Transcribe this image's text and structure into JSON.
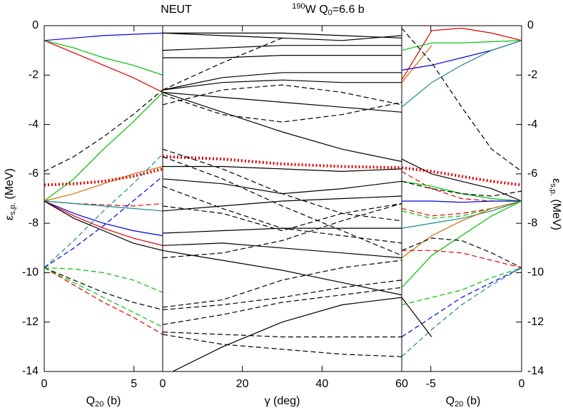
{
  "chart_data": [
    {
      "type": "line",
      "ylabel": [
        "ε",
        "s,p.",
        " (MeV)"
      ],
      "xlabel": [
        "Q",
        "20",
        " (b)"
      ],
      "xlim": [
        0,
        6.6
      ],
      "xticks": [
        0,
        5
      ],
      "ylim": [
        -14,
        0
      ],
      "yticks": [
        -14,
        -12,
        -10,
        -8,
        -6,
        -4,
        -2,
        0
      ],
      "ytick_side": "left",
      "x": [
        0,
        1.65,
        3.3,
        4.95,
        6.6
      ],
      "series": [
        {
          "color": "#e00000",
          "dash": "solid",
          "values": [
            -0.6,
            -1.1,
            -1.6,
            -2.1,
            -2.7
          ]
        },
        {
          "color": "#00c000",
          "dash": "solid",
          "values": [
            -0.6,
            -0.9,
            -1.3,
            -1.6,
            -2.0
          ]
        },
        {
          "color": "#0000e0",
          "dash": "solid",
          "values": [
            -0.6,
            -0.5,
            -0.4,
            -0.35,
            -0.3
          ]
        },
        {
          "color": "#000000",
          "dash": "dashed",
          "values": [
            -5.9,
            -5.3,
            -4.5,
            -3.6,
            -2.6
          ]
        },
        {
          "color": "#00c000",
          "dash": "solid",
          "values": [
            -7.1,
            -6.2,
            -5.0,
            -3.9,
            -2.7
          ]
        },
        {
          "color": "#d07000",
          "dash": "solid",
          "values": [
            -7.1,
            -6.8,
            -6.4,
            -6.0,
            -5.7
          ]
        },
        {
          "color": "#e00000",
          "dash": "dotted",
          "values": [
            -6.45,
            -6.4,
            -6.3,
            -6.1,
            -5.8
          ]
        },
        {
          "color": "#e00000",
          "dash": "dashed",
          "values": [
            -7.1,
            -7.2,
            -7.25,
            -7.3,
            -7.2
          ]
        },
        {
          "color": "#1a8a8a",
          "dash": "solid",
          "values": [
            -7.1,
            -7.2,
            -7.3,
            -7.4,
            -7.5
          ]
        },
        {
          "color": "#0000e0",
          "dash": "solid",
          "values": [
            -7.1,
            -7.6,
            -8.0,
            -8.3,
            -8.5
          ]
        },
        {
          "color": "#e00000",
          "dash": "solid",
          "values": [
            -7.1,
            -7.7,
            -8.2,
            -8.6,
            -8.9
          ]
        },
        {
          "color": "#000000",
          "dash": "solid",
          "values": [
            -7.1,
            -7.8,
            -8.3,
            -8.8,
            -9.1
          ]
        },
        {
          "color": "#1a8a8a",
          "dash": "dashed",
          "values": [
            -9.8,
            -8.7,
            -7.5,
            -6.4,
            -5.2
          ]
        },
        {
          "color": "#0000e0",
          "dash": "dashed",
          "values": [
            -9.8,
            -9.0,
            -8.1,
            -7.1,
            -6.1
          ]
        },
        {
          "color": "#00c000",
          "dash": "dashed",
          "values": [
            -9.8,
            -9.85,
            -10.0,
            -10.3,
            -10.8
          ]
        },
        {
          "color": "#000000",
          "dash": "dashed",
          "values": [
            -9.8,
            -10.3,
            -10.8,
            -11.2,
            -11.5
          ]
        },
        {
          "color": "#e00000",
          "dash": "dashed",
          "values": [
            -9.8,
            -10.5,
            -11.2,
            -11.8,
            -12.5
          ]
        },
        {
          "color": "#00c000",
          "dash": "dashed",
          "values": [
            -9.8,
            -10.4,
            -11.0,
            -11.6,
            -12.2
          ]
        }
      ]
    },
    {
      "type": "line",
      "label": "NEUT",
      "title": [
        "190",
        "W Q",
        "0",
        "=6.6 b"
      ],
      "xlabel": [
        "γ (deg)"
      ],
      "xlim": [
        0,
        60
      ],
      "xticks": [
        0,
        20,
        40,
        60
      ],
      "ylim": [
        -14,
        0
      ],
      "x": [
        0,
        15,
        30,
        45,
        60
      ],
      "series": [
        {
          "color": "#000000",
          "dash": "solid",
          "values": [
            -0.3,
            -0.3,
            -0.3,
            -0.4,
            -0.5
          ]
        },
        {
          "color": "#000000",
          "dash": "solid",
          "values": [
            -0.3,
            -0.4,
            -0.5,
            -0.6,
            -0.4
          ]
        },
        {
          "color": "#000000",
          "dash": "solid",
          "values": [
            -1.0,
            -0.9,
            -0.8,
            -0.8,
            -0.8
          ]
        },
        {
          "color": "#000000",
          "dash": "solid",
          "values": [
            -1.3,
            -1.3,
            -1.2,
            -1.2,
            -1.2
          ]
        },
        {
          "color": "#000000",
          "dash": "solid",
          "values": [
            -2.6,
            -2.1,
            -1.9,
            -1.9,
            -1.9
          ]
        },
        {
          "color": "#000000",
          "dash": "solid",
          "values": [
            -2.6,
            -2.3,
            -2.2,
            -2.3,
            -2.3
          ]
        },
        {
          "color": "#000000",
          "dash": "solid",
          "values": [
            -2.7,
            -2.9,
            -3.1,
            -3.3,
            -3.5
          ]
        },
        {
          "color": "#000000",
          "dash": "solid",
          "values": [
            -2.7,
            -3.5,
            -4.3,
            -5.0,
            -5.5
          ]
        },
        {
          "color": "#000000",
          "dash": "solid",
          "values": [
            -5.7,
            -5.7,
            -5.8,
            -5.9,
            -5.8
          ]
        },
        {
          "color": "#000000",
          "dash": "solid",
          "values": [
            -6.2,
            -6.4,
            -6.8,
            -6.6,
            -6.3
          ]
        },
        {
          "color": "#000000",
          "dash": "solid",
          "values": [
            -7.5,
            -7.3,
            -7.1,
            -7.0,
            -6.9
          ]
        },
        {
          "color": "#000000",
          "dash": "solid",
          "values": [
            -8.4,
            -8.3,
            -8.2,
            -8.2,
            -8.2
          ]
        },
        {
          "color": "#000000",
          "dash": "solid",
          "values": [
            -8.9,
            -8.8,
            -9.0,
            -9.2,
            -9.4
          ]
        },
        {
          "color": "#000000",
          "dash": "solid",
          "values": [
            -9.1,
            -9.5,
            -9.9,
            -10.4,
            -10.9
          ]
        },
        {
          "color": "#000000",
          "dash": "solid",
          "values": [
            -14.2,
            -13.0,
            -12.0,
            -11.3,
            -11.0
          ]
        },
        {
          "color": "#e00000",
          "dash": "dotted",
          "values": [
            -5.3,
            -5.4,
            -5.6,
            -5.7,
            -5.75
          ]
        },
        {
          "color": "#000000",
          "dash": "dashed",
          "values": [
            -2.6,
            -1.5,
            -0.5,
            null,
            null
          ]
        },
        {
          "color": "#000000",
          "dash": "dashed",
          "values": [
            -3.2,
            -2.6,
            -2.4,
            -2.7,
            -3.2
          ]
        },
        {
          "color": "#000000",
          "dash": "dashed",
          "values": [
            -2.8,
            -3.6,
            -3.9,
            -3.6,
            -3.1
          ]
        },
        {
          "color": "#000000",
          "dash": "dashed",
          "values": [
            -5.0,
            -5.8,
            -6.8,
            -7.6,
            -7.9
          ]
        },
        {
          "color": "#000000",
          "dash": "dashed",
          "values": [
            -5.3,
            -6.2,
            -7.3,
            -8.3,
            -9.3
          ]
        },
        {
          "color": "#000000",
          "dash": "dashed",
          "values": [
            -6.5,
            -7.4,
            -8.2,
            -8.5,
            -8.8
          ]
        },
        {
          "color": "#000000",
          "dash": "dashed",
          "values": [
            -7.3,
            -7.6,
            -8.3,
            -7.6,
            -7.2
          ]
        },
        {
          "color": "#000000",
          "dash": "dashed",
          "values": [
            -9.4,
            -9.2,
            -8.7,
            -7.9,
            -7.2
          ]
        },
        {
          "color": "#000000",
          "dash": "dashed",
          "values": [
            -11.4,
            -11.1,
            -10.3,
            -9.8,
            -9.5
          ]
        },
        {
          "color": "#000000",
          "dash": "dashed",
          "values": [
            -11.5,
            -11.3,
            -11.0,
            -10.6,
            -10.3
          ]
        },
        {
          "color": "#000000",
          "dash": "dashed",
          "values": [
            -12.1,
            -11.7,
            -11.2,
            -10.9,
            -10.6
          ]
        },
        {
          "color": "#000000",
          "dash": "dashed",
          "values": [
            -12.4,
            -12.5,
            -12.6,
            -12.6,
            -12.6
          ]
        },
        {
          "color": "#000000",
          "dash": "dashed",
          "values": [
            -12.5,
            -12.9,
            -13.1,
            -13.3,
            -13.4
          ]
        }
      ]
    },
    {
      "type": "line",
      "ylabel": [
        "ε",
        "s,p.",
        " (MeV)"
      ],
      "xlabel": [
        "Q",
        "20",
        " (b)"
      ],
      "xlim": [
        -6.6,
        0
      ],
      "xticks": [
        -5,
        0
      ],
      "ylim": [
        -14,
        0
      ],
      "yticks": [
        -14,
        -12,
        -10,
        -8,
        -6,
        -4,
        -2,
        0
      ],
      "ytick_side": "right",
      "x": [
        -6.6,
        -4.95,
        -3.3,
        -1.65,
        0
      ],
      "series": [
        {
          "color": "#e00000",
          "dash": "solid",
          "values": [
            -2.2,
            -0.2,
            -0.1,
            -0.3,
            -0.6
          ]
        },
        {
          "color": "#d07000",
          "dash": "solid",
          "values": [
            -2.3,
            -0.8,
            null,
            null,
            null
          ]
        },
        {
          "color": "#00c000",
          "dash": "solid",
          "values": [
            -1.0,
            -0.7,
            -0.7,
            -0.65,
            -0.6
          ]
        },
        {
          "color": "#0000e0",
          "dash": "solid",
          "values": [
            -1.8,
            -1.6,
            -1.3,
            -1.0,
            -0.6
          ]
        },
        {
          "color": "#1a8a8a",
          "dash": "solid",
          "values": [
            -3.3,
            -2.3,
            -1.6,
            -1.0,
            -0.6
          ]
        },
        {
          "color": "#000000",
          "dash": "dashed",
          "values": [
            -0.1,
            -1.5,
            -3.3,
            -5.0,
            -5.9
          ]
        },
        {
          "color": "#000000",
          "dash": "solid",
          "values": [
            -5.4,
            -6.0,
            -6.3,
            -6.6,
            -7.1
          ]
        },
        {
          "color": "#e00000",
          "dash": "dotted",
          "values": [
            -5.75,
            -5.9,
            -6.1,
            -6.3,
            -6.45
          ]
        },
        {
          "color": "#e00000",
          "dash": "dashed",
          "values": [
            -5.9,
            -6.6,
            -7.0,
            -7.1,
            -7.1
          ]
        },
        {
          "color": "#00c000",
          "dash": "solid",
          "values": [
            -6.3,
            -6.5,
            -6.8,
            -7.0,
            -7.1
          ]
        },
        {
          "color": "#000000",
          "dash": "dashed",
          "values": [
            -6.3,
            -6.6,
            -6.8,
            -6.9,
            -6.7
          ]
        },
        {
          "color": "#e00000",
          "dash": "dashed",
          "values": [
            -7.4,
            -7.7,
            -7.6,
            -7.4,
            -7.1
          ]
        },
        {
          "color": "#00c000",
          "dash": "dashed",
          "values": [
            -7.5,
            -7.8,
            -7.7,
            -7.4,
            -7.1
          ]
        },
        {
          "color": "#0000e0",
          "dash": "solid",
          "values": [
            -7.1,
            -7.1,
            -7.15,
            -7.1,
            -7.1
          ]
        },
        {
          "color": "#1a8a8a",
          "dash": "solid",
          "values": [
            -8.2,
            -8.0,
            -7.8,
            -7.5,
            -7.1
          ]
        },
        {
          "color": "#d07000",
          "dash": "solid",
          "values": [
            -9.4,
            -8.5,
            -7.9,
            -7.4,
            -7.1
          ]
        },
        {
          "color": "#00c000",
          "dash": "solid",
          "values": [
            -10.6,
            -9.3,
            -8.5,
            -7.7,
            -7.1
          ]
        },
        {
          "color": "#000000",
          "dash": "dashed",
          "values": [
            -9.1,
            -8.6,
            -8.7,
            -9.2,
            -9.8
          ]
        },
        {
          "color": "#e00000",
          "dash": "dashed",
          "values": [
            -9.1,
            -9.1,
            -9.2,
            -9.5,
            -9.8
          ]
        },
        {
          "color": "#00c000",
          "dash": "dashed",
          "values": [
            -11.3,
            -11.0,
            -10.7,
            -10.2,
            -9.8
          ]
        },
        {
          "color": "#0000e0",
          "dash": "dashed",
          "values": [
            -12.6,
            -11.8,
            -11.0,
            -10.4,
            -9.8
          ]
        },
        {
          "color": "#1a8a8a",
          "dash": "dashed",
          "values": [
            -13.4,
            -12.3,
            -11.3,
            -10.5,
            -9.8
          ]
        },
        {
          "color": "#000000",
          "dash": "solid",
          "values": [
            -11.0,
            -12.6,
            null,
            null,
            null
          ]
        }
      ]
    }
  ]
}
